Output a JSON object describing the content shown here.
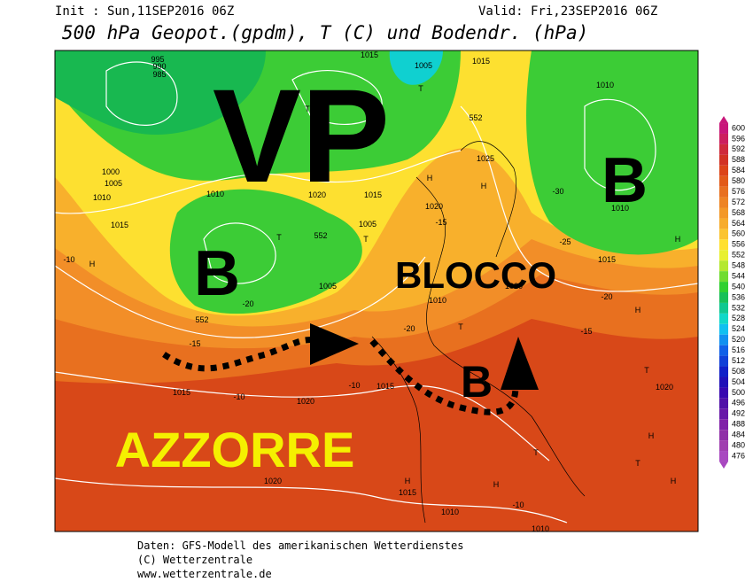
{
  "header": {
    "init": "Init : Sun,11SEP2016 06Z",
    "valid": "Valid: Fri,23SEP2016 06Z",
    "title": "500 hPa Geopot.(gpdm), T (C) und Bodendr. (hPa)"
  },
  "annotations": [
    "VP",
    "B",
    "B",
    "BLOCCO",
    "B",
    "AZZORRE"
  ],
  "map_labels": [
    "1015",
    "1005",
    "1015",
    "1010",
    "995",
    "990",
    "985",
    "T",
    "T",
    "552",
    "1025",
    "H",
    "H",
    "1010",
    "1020",
    "1015",
    "1000",
    "1005",
    "1010",
    "1015",
    "H",
    "T",
    "T",
    "552",
    "1005",
    "1005",
    "1020",
    "1010",
    "H",
    "H",
    "T",
    "-15",
    "-15",
    "-20",
    "1015",
    "1020",
    "1015",
    "T",
    "H",
    "T",
    "T",
    "H",
    "1015",
    "1020",
    "1010",
    "-10",
    "H",
    "1010",
    "1015",
    "-20",
    "-25",
    "-30",
    "-20",
    "-10",
    "-10",
    "-10",
    "1020",
    "-15",
    "552",
    "1020",
    "H",
    "1010"
  ],
  "legend": {
    "ticks": [
      600,
      596,
      592,
      588,
      584,
      580,
      576,
      572,
      568,
      564,
      560,
      556,
      552,
      548,
      544,
      540,
      536,
      532,
      528,
      524,
      520,
      516,
      512,
      508,
      504,
      500,
      496,
      492,
      488,
      484,
      480,
      476
    ],
    "colors": [
      "#c8177a",
      "#cc1f5e",
      "#cf2a3c",
      "#d23224",
      "#dc4418",
      "#e25a18",
      "#e87020",
      "#ee8424",
      "#f39828",
      "#f7ac2c",
      "#fbc430",
      "#ffe030",
      "#e8f030",
      "#b4e830",
      "#70dc30",
      "#30d030",
      "#18c058",
      "#10c890",
      "#10d8c8",
      "#10c0f0",
      "#1090f0",
      "#1060e8",
      "#1040d8",
      "#1020c8",
      "#2010b8",
      "#3808b0",
      "#5010a8",
      "#6818a8",
      "#8020a8",
      "#9030a8",
      "#a040b0",
      "#a848c0"
    ]
  },
  "footer": [
    "Daten: GFS-Modell des amerikanischen Wetterdienstes",
    "(C) Wetterzentrale",
    "www.wetterzentrale.de"
  ]
}
